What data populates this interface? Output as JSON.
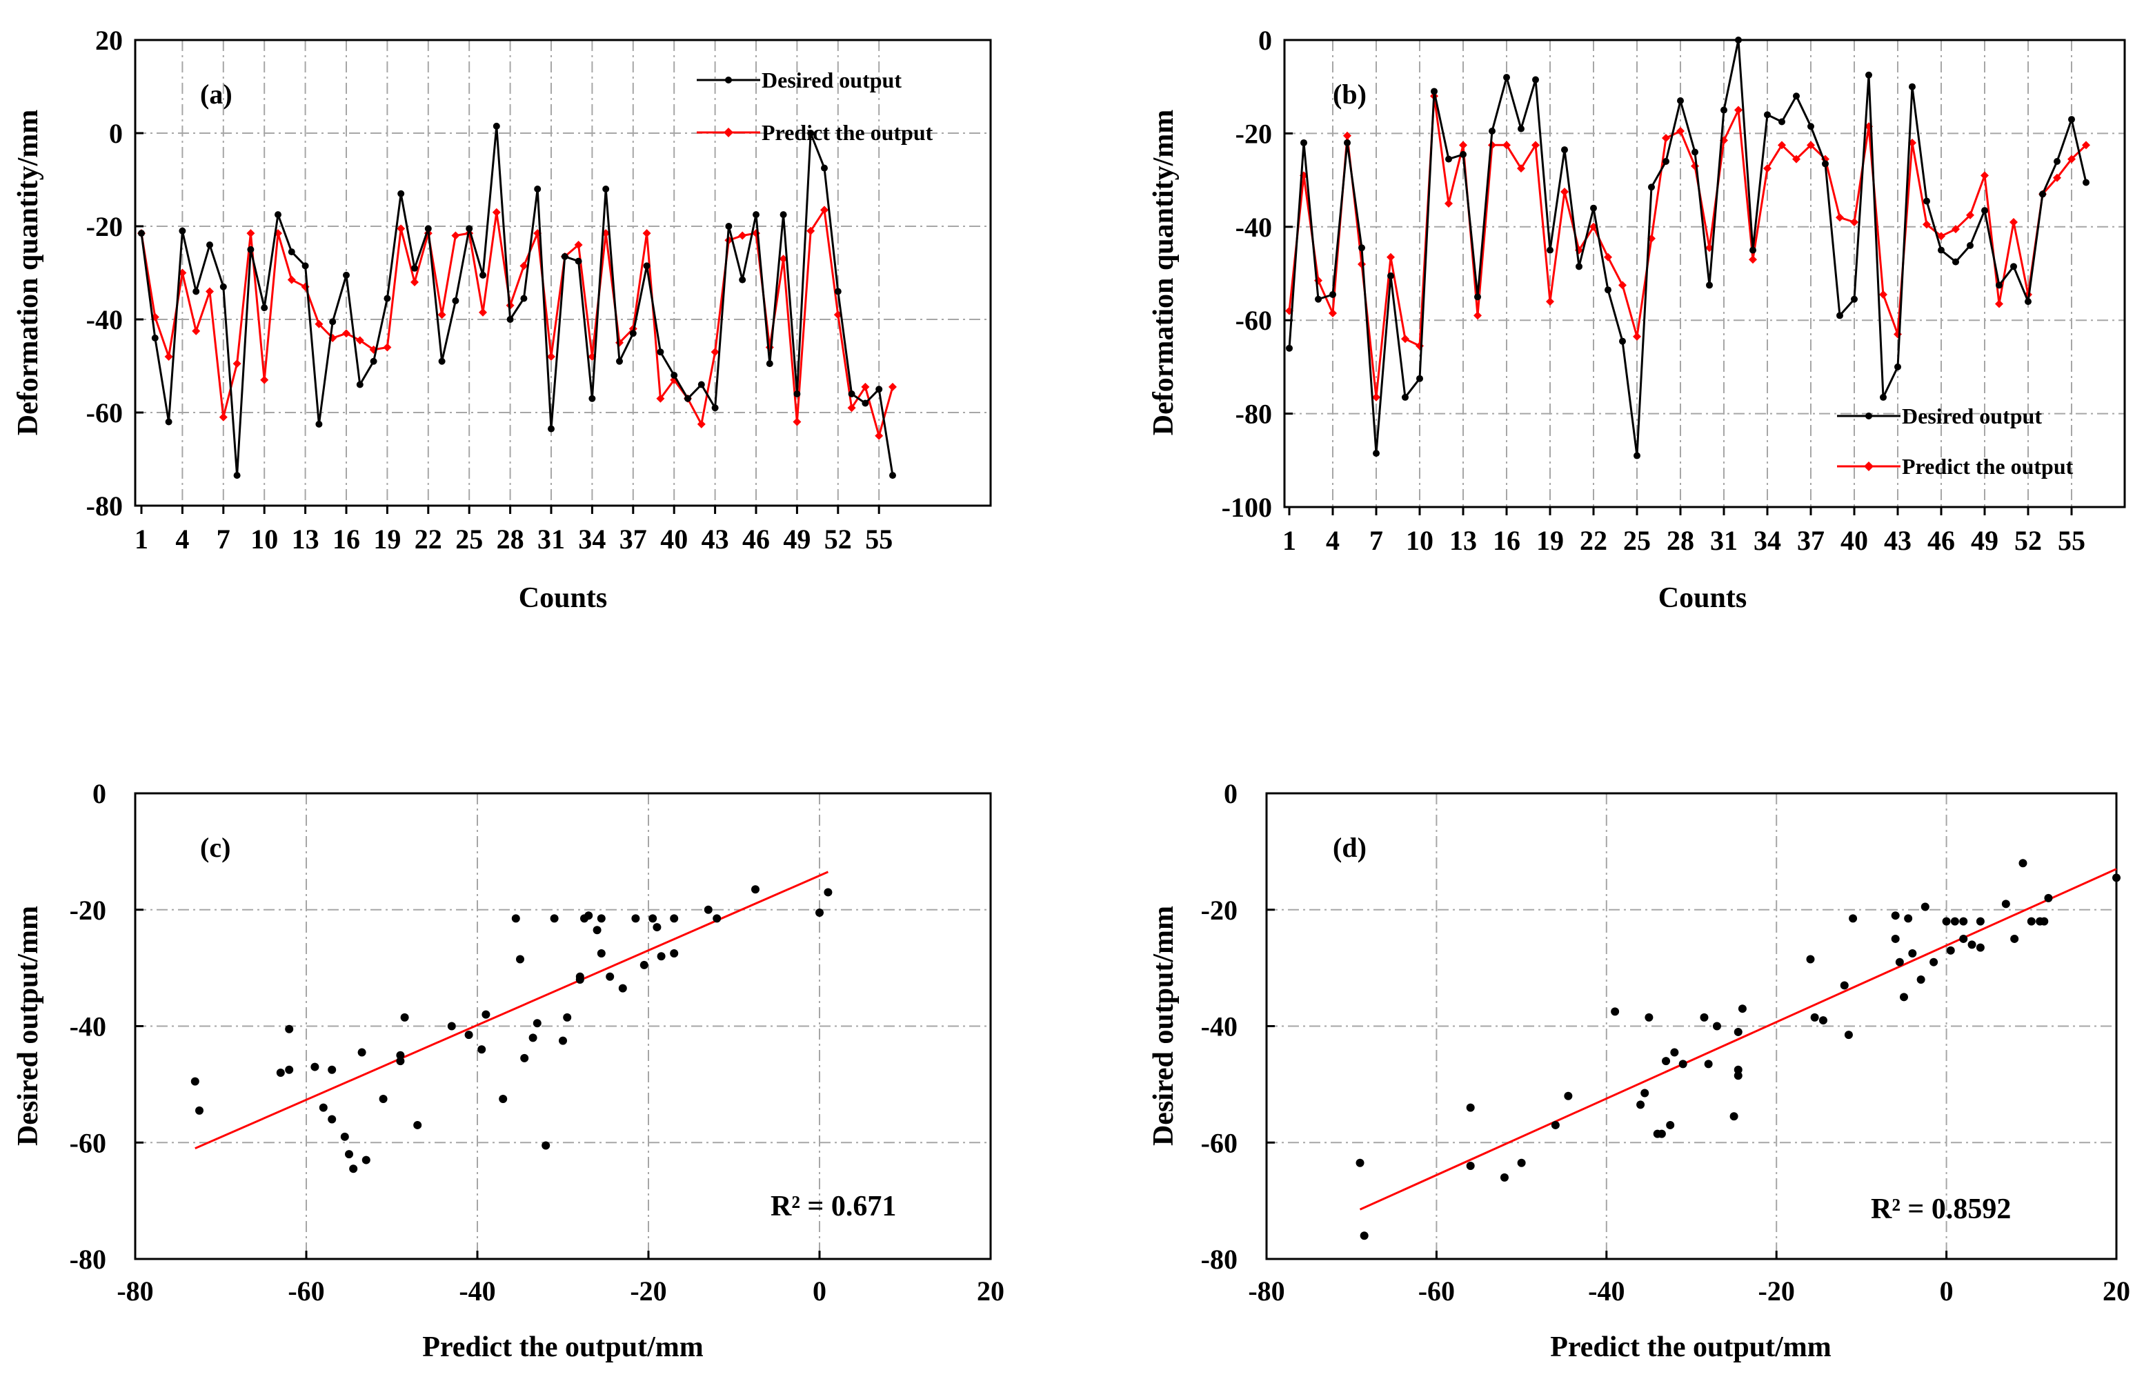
{
  "chart_data": [
    {
      "id": "a",
      "type": "line",
      "panel_label": "(a)",
      "xlabel": "Counts",
      "ylabel": "Deformation  quantity/mm",
      "ylim": [
        -80,
        20
      ],
      "yticks": [
        20,
        0,
        -20,
        -40,
        -60,
        -80
      ],
      "xtick_labels": [
        "1",
        "4",
        "7",
        "10",
        "13",
        "16",
        "19",
        "22",
        "25",
        "28",
        "31",
        "34",
        "37",
        "40",
        "43",
        "46",
        "49",
        "52",
        "55"
      ],
      "legend_position": "top-right",
      "grid": true,
      "series": [
        {
          "name": "Desired output",
          "color": "#000000",
          "values": [
            -21.5,
            -44,
            -62,
            -21,
            -34,
            -24,
            -33,
            -73.5,
            -25,
            -37.5,
            -17.5,
            -25.5,
            -28.5,
            -62.5,
            -40.5,
            -30.5,
            -54,
            -49,
            -35.5,
            -13,
            -29,
            -20.5,
            -49,
            -36,
            -20.5,
            -30.5,
            1.5,
            -40,
            -35.5,
            -12,
            -63.5,
            -26.5,
            -27.5,
            -57,
            -12,
            -49,
            -43,
            -28.5,
            -47,
            -52,
            -57,
            -54,
            -59,
            -20,
            -31.5,
            -17.5,
            -49.5,
            -17.5,
            -56,
            0,
            -7.5,
            -34,
            -56,
            -58,
            -55,
            -73.5
          ]
        },
        {
          "name": "Predict the output",
          "color": "#ff0000",
          "values": [
            -21.5,
            -39.5,
            -48,
            -30,
            -42.5,
            -34,
            -61,
            -49.5,
            -21.5,
            -53,
            -21.5,
            -31.5,
            -33,
            -41,
            -44,
            -43,
            -44.5,
            -46.5,
            -46,
            -20.5,
            -32,
            -21.5,
            -39,
            -22,
            -21.5,
            -38.5,
            -17,
            -37,
            -28.5,
            -21.5,
            -48,
            -26.5,
            -24,
            -48,
            -21.5,
            -45,
            -42,
            -21.5,
            -57,
            -53,
            -57,
            -62.5,
            -47,
            -23,
            -22,
            -21.5,
            -46,
            -27,
            -62,
            -21,
            -16.5,
            -39,
            -59,
            -54.5,
            -65,
            -54.5
          ]
        }
      ]
    },
    {
      "id": "b",
      "type": "line",
      "panel_label": "(b)",
      "xlabel": "Counts",
      "ylabel": "Deformation  quantity/mm",
      "ylim": [
        -100,
        0
      ],
      "yticks": [
        0,
        -20,
        -40,
        -60,
        -80,
        -100
      ],
      "xtick_labels": [
        "1",
        "4",
        "7",
        "10",
        "13",
        "16",
        "19",
        "22",
        "25",
        "28",
        "31",
        "34",
        "37",
        "40",
        "43",
        "46",
        "49",
        "52",
        "55"
      ],
      "legend_position": "bottom-right",
      "grid": true,
      "series": [
        {
          "name": "Desired output",
          "color": "#000000",
          "values": [
            -66,
            -22,
            -55.5,
            -54.5,
            -22,
            -44.5,
            -88.5,
            -50.5,
            -76.5,
            -72.5,
            -11,
            -25.5,
            -24.5,
            -55,
            -19.5,
            -8,
            -19,
            -8.5,
            -45,
            -23.5,
            -48.5,
            -36,
            -53.5,
            -64.5,
            -89,
            -31.5,
            -26,
            -13,
            -24,
            -52.5,
            -15,
            0,
            -45,
            -16,
            -17.5,
            -12,
            -18.5,
            -26.5,
            -59,
            -55.5,
            -7.5,
            -76.5,
            -70,
            -10,
            -34.5,
            -45,
            -47.5,
            -44,
            -36.5,
            -52.5,
            -48.5,
            -56,
            -33,
            -26,
            -17,
            -30.5
          ]
        },
        {
          "name": "Predict the output",
          "color": "#ff0000",
          "values": [
            -58,
            -29,
            -51.5,
            -58.5,
            -20.5,
            -48,
            -76.5,
            -46.5,
            -64,
            -65.5,
            -12,
            -35,
            -22.5,
            -59,
            -22.5,
            -22.5,
            -27.5,
            -22.5,
            -56,
            -32.5,
            -45,
            -40,
            -46.5,
            -52.5,
            -63.5,
            -42.5,
            -21,
            -19.5,
            -27,
            -44.5,
            -21.5,
            -15,
            -47,
            -27.5,
            -22.5,
            -25.5,
            -22.5,
            -25.5,
            -38,
            -39,
            -18.5,
            -54.5,
            -63,
            -22,
            -39.5,
            -42,
            -40.5,
            -37.5,
            -29,
            -56.5,
            -39,
            -54.5,
            -33,
            -29.5,
            -25.5,
            -22.5
          ]
        }
      ]
    },
    {
      "id": "c",
      "type": "scatter",
      "panel_label": "(c)",
      "xlabel": "Predict the output/mm",
      "ylabel": "Desired output/mm",
      "xlim": [
        -80,
        20
      ],
      "ylim": [
        -80,
        0
      ],
      "xticks": [
        -80,
        -60,
        -40,
        -20,
        0,
        20
      ],
      "yticks": [
        0,
        -20,
        -40,
        -60,
        -80
      ],
      "grid": true,
      "annotation": "R² = 0.671",
      "points": [
        [
          -73,
          -49.5
        ],
        [
          -72.5,
          -54.5
        ],
        [
          -63,
          -48
        ],
        [
          -62,
          -47.5
        ],
        [
          -62,
          -40.5
        ],
        [
          -59,
          -47
        ],
        [
          -58,
          -54
        ],
        [
          -57,
          -47.5
        ],
        [
          -57,
          -56
        ],
        [
          -55.5,
          -59
        ],
        [
          -55,
          -62
        ],
        [
          -54.5,
          -64.5
        ],
        [
          -53.5,
          -44.5
        ],
        [
          -53,
          -63
        ],
        [
          -51,
          -52.5
        ],
        [
          -49,
          -46
        ],
        [
          -49,
          -45
        ],
        [
          -48.5,
          -38.5
        ],
        [
          -47,
          -57
        ],
        [
          -43,
          -40
        ],
        [
          -41,
          -41.5
        ],
        [
          -39.5,
          -44
        ],
        [
          -39,
          -38
        ],
        [
          -37,
          -52.5
        ],
        [
          -35.5,
          -21.5
        ],
        [
          -35,
          -28.5
        ],
        [
          -34.5,
          -45.5
        ],
        [
          -33.5,
          -42
        ],
        [
          -33,
          -39.5
        ],
        [
          -32,
          -60.5
        ],
        [
          -31,
          -21.5
        ],
        [
          -30,
          -42.5
        ],
        [
          -29.5,
          -38.5
        ],
        [
          -28,
          -32
        ],
        [
          -28,
          -31.5
        ],
        [
          -27.5,
          -21.5
        ],
        [
          -27,
          -21
        ],
        [
          -26,
          -23.5
        ],
        [
          -25.5,
          -27.5
        ],
        [
          -25.5,
          -21.5
        ],
        [
          -24.5,
          -31.5
        ],
        [
          -23,
          -33.5
        ],
        [
          -21.5,
          -21.5
        ],
        [
          -20.5,
          -29.5
        ],
        [
          -19.5,
          -21.5
        ],
        [
          -19,
          -23
        ],
        [
          -18.5,
          -28
        ],
        [
          -17,
          -21.5
        ],
        [
          -17,
          -27.5
        ],
        [
          -13,
          -20
        ],
        [
          -12,
          -21.5
        ],
        [
          -7.5,
          -16.5
        ],
        [
          0,
          -20.5
        ],
        [
          1,
          -17
        ]
      ],
      "trendline": {
        "x": [
          -73,
          1
        ],
        "y": [
          -61,
          -13.5
        ]
      }
    },
    {
      "id": "d",
      "type": "scatter",
      "panel_label": "(d)",
      "xlabel": "Predict the output/mm",
      "ylabel": "Desired output/mm",
      "xlim": [
        -80,
        20
      ],
      "ylim": [
        -80,
        0
      ],
      "xticks": [
        -80,
        -60,
        -40,
        -20,
        0,
        20
      ],
      "yticks": [
        0,
        -20,
        -40,
        -60,
        -80
      ],
      "grid": true,
      "annotation": "R² = 0.8592",
      "points": [
        [
          -69,
          -63.5
        ],
        [
          -68.5,
          -76
        ],
        [
          -56,
          -54
        ],
        [
          -56,
          -64
        ],
        [
          -52,
          -66
        ],
        [
          -50,
          -63.5
        ],
        [
          -46,
          -57
        ],
        [
          -44.5,
          -52
        ],
        [
          -39,
          -37.5
        ],
        [
          -36,
          -53.5
        ],
        [
          -35.5,
          -51.5
        ],
        [
          -35,
          -38.5
        ],
        [
          -34,
          -58.5
        ],
        [
          -33.5,
          -58.5
        ],
        [
          -33,
          -46
        ],
        [
          -32.5,
          -57
        ],
        [
          -32,
          -44.5
        ],
        [
          -31,
          -46.5
        ],
        [
          -28.5,
          -38.5
        ],
        [
          -28,
          -46.5
        ],
        [
          -27,
          -40
        ],
        [
          -25,
          -55.5
        ],
        [
          -24.5,
          -48.5
        ],
        [
          -24.5,
          -47.5
        ],
        [
          -24.5,
          -41
        ],
        [
          -24,
          -37
        ],
        [
          -16,
          -28.5
        ],
        [
          -15.5,
          -38.5
        ],
        [
          -14.5,
          -39
        ],
        [
          -12,
          -33
        ],
        [
          -11.5,
          -41.5
        ],
        [
          -11,
          -21.5
        ],
        [
          -6,
          -21
        ],
        [
          -6,
          -25
        ],
        [
          -5.5,
          -29
        ],
        [
          -5,
          -35
        ],
        [
          -4.5,
          -21.5
        ],
        [
          -4,
          -27.5
        ],
        [
          -3,
          -32
        ],
        [
          -2.5,
          -19.5
        ],
        [
          -1.5,
          -29
        ],
        [
          0,
          -22
        ],
        [
          0.5,
          -27
        ],
        [
          1,
          -22
        ],
        [
          2,
          -22
        ],
        [
          2,
          -25
        ],
        [
          3,
          -26
        ],
        [
          4,
          -22
        ],
        [
          4,
          -26.5
        ],
        [
          7,
          -19
        ],
        [
          8,
          -25
        ],
        [
          9,
          -12
        ],
        [
          10,
          -22
        ],
        [
          11,
          -22
        ],
        [
          11.5,
          -22
        ],
        [
          12,
          -18
        ],
        [
          20,
          -14.5
        ]
      ],
      "trendline": {
        "x": [
          -69,
          20
        ],
        "y": [
          -71.5,
          -13
        ]
      }
    }
  ]
}
